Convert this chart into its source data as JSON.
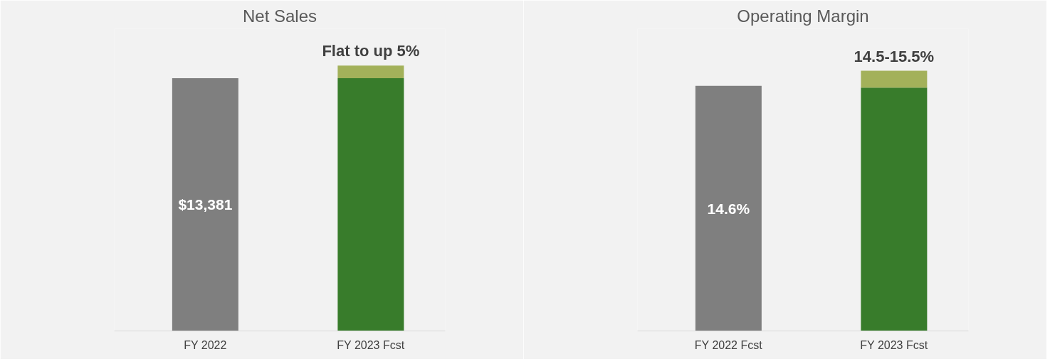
{
  "chart_data": [
    {
      "type": "bar",
      "title": "Net Sales",
      "categories": [
        "FY 2022",
        "FY 2023 Fcst"
      ],
      "stacked": true,
      "grid": false,
      "tick_labels": "x",
      "ylim": [
        0,
        16000
      ],
      "series": [
        {
          "values": [
            13381,
            13381
          ],
          "colors": [
            "#7f7f7f",
            "#387c2b"
          ],
          "value_labels": [
            "$13,381",
            null
          ]
        },
        {
          "values": [
            null,
            669
          ],
          "color": "#a3b15a"
        }
      ],
      "totals": [
        null,
        "Flat to up 5%"
      ]
    },
    {
      "type": "bar",
      "title": "Operating Margin",
      "categories": [
        "FY 2022 Fcst",
        "FY 2023 Fcst"
      ],
      "stacked": true,
      "grid": false,
      "tick_labels": "x",
      "ylim": [
        0,
        18
      ],
      "series": [
        {
          "values": [
            14.6,
            14.5
          ],
          "colors": [
            "#7f7f7f",
            "#387c2b"
          ],
          "value_labels": [
            "14.6%",
            null
          ]
        },
        {
          "values": [
            null,
            1.0
          ],
          "color": "#a3b15a"
        }
      ],
      "totals": [
        null,
        "14.5-15.5%"
      ]
    }
  ]
}
